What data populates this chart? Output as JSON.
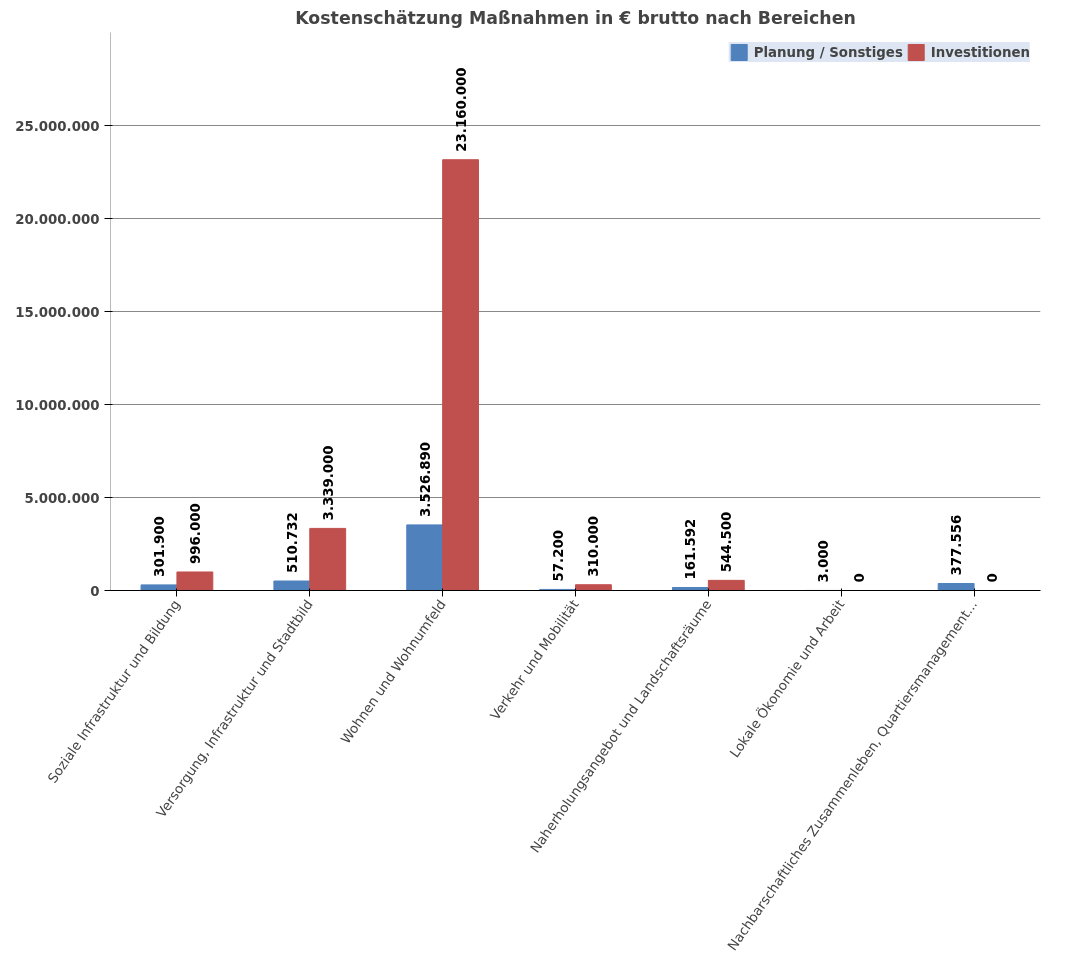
{
  "chart_data": {
    "type": "bar",
    "title": "Kostenschätzung Maßnahmen in € brutto nach Bereichen",
    "categories": [
      "Soziale Infrastruktur und Bildung",
      "Versorgung, Infrastruktur und Stadtbild",
      "Wohnen und Wohnumfeld",
      "Verkehr und Mobilität",
      "Naherholungsangebot und Landschaftsräume",
      "Lokale Ökonomie und Arbeit",
      "Nachbarschaftliches Zusammenleben, Quartiersmanagement..."
    ],
    "series": [
      {
        "name": "Planung / Sonstiges",
        "color": "#4f81bd",
        "values": [
          301900,
          510732,
          3526890,
          57200,
          161592,
          3000,
          377556
        ],
        "value_labels": [
          "301.900",
          "510.732",
          "3.526.890",
          "57.200",
          "161.592",
          "3.000",
          "377.556"
        ]
      },
      {
        "name": "Investitionen",
        "color": "#c0504d",
        "values": [
          996000,
          3339000,
          23160000,
          310000,
          544500,
          0,
          0
        ],
        "value_labels": [
          "996.000",
          "3.339.000",
          "23.160.000",
          "310.000",
          "544.500",
          "0",
          "0"
        ]
      }
    ],
    "ylim": [
      0,
      30000000
    ],
    "yticks": [
      {
        "value": 0,
        "label": "0"
      },
      {
        "value": 5000000,
        "label": "5.000.000"
      },
      {
        "value": 10000000,
        "label": "10.000.000"
      },
      {
        "value": 15000000,
        "label": "15.000.000"
      },
      {
        "value": 20000000,
        "label": "20.000.000"
      },
      {
        "value": 25000000,
        "label": "25.000.000"
      }
    ],
    "grid": "y",
    "legend": "top right"
  }
}
